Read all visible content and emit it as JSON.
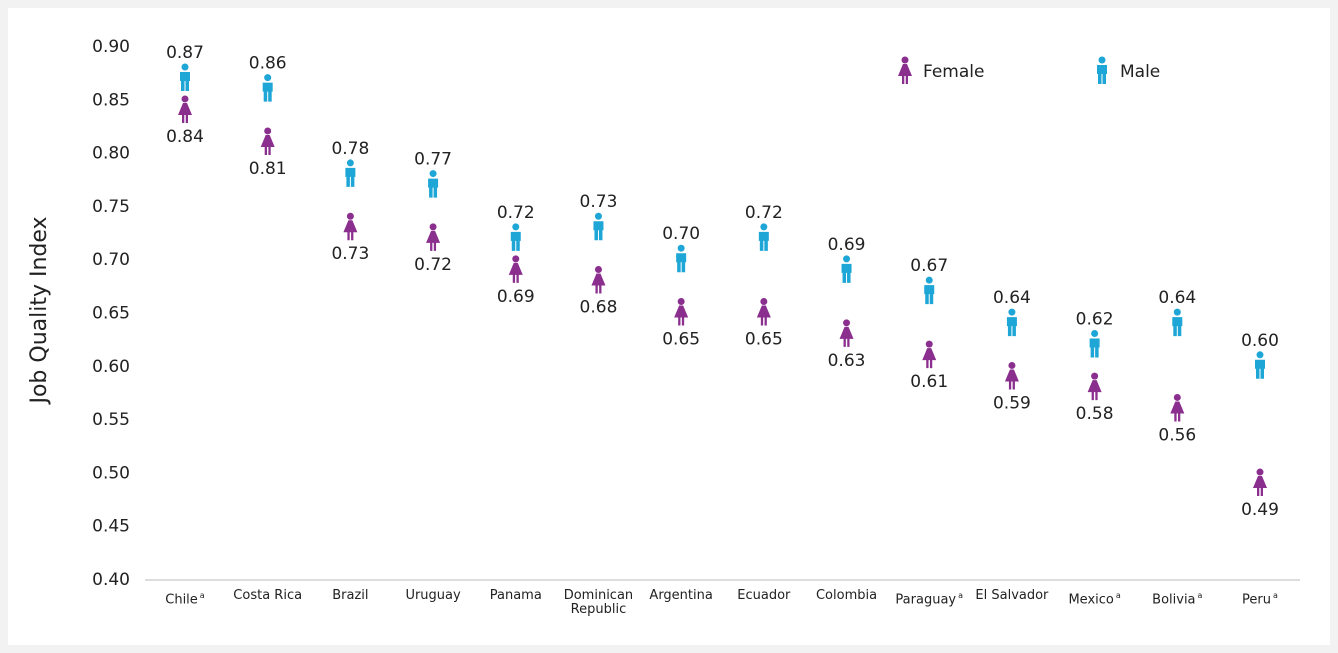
{
  "chart_data": {
    "type": "icon-dot",
    "y_label": "Job Quality Index",
    "categories": [
      "Chile",
      "Costa Rica",
      "Brazil",
      "Uruguay",
      "Panama",
      "Dominican Republic",
      "Argentina",
      "Ecuador",
      "Colombia",
      "Paraguay",
      "El Salvador",
      "Mexico",
      "Bolivia",
      "Peru"
    ],
    "category_notes": [
      "a",
      null,
      null,
      null,
      null,
      null,
      null,
      null,
      null,
      "a",
      null,
      "a",
      "a",
      "a"
    ],
    "series": [
      {
        "name": "Female",
        "color": "#8b2f8f",
        "values": [
          0.84,
          0.81,
          0.73,
          0.72,
          0.69,
          0.68,
          0.65,
          0.65,
          0.63,
          0.61,
          0.59,
          0.58,
          0.56,
          0.49
        ],
        "value_labels": [
          "0.84",
          "0.81",
          "0.73",
          "0.72",
          "0.69",
          "0.68",
          "0.65",
          "0.65",
          "0.63",
          "0.61",
          "0.59",
          "0.58",
          "0.56",
          "0.49"
        ]
      },
      {
        "name": "Male",
        "color": "#1ea6d6",
        "values": [
          0.87,
          0.86,
          0.78,
          0.77,
          0.72,
          0.73,
          0.7,
          0.72,
          0.69,
          0.67,
          0.64,
          0.62,
          0.64,
          0.6
        ],
        "value_labels": [
          "0.87",
          "0.86",
          "0.78",
          "0.77",
          "0.72",
          "0.73",
          "0.70",
          "0.72",
          "0.69",
          "0.67",
          "0.64",
          "0.62",
          "0.64",
          "0.60"
        ]
      }
    ],
    "ylim": [
      0.4,
      0.9
    ],
    "yticks": [
      {
        "value": 0.4,
        "label": "0.40"
      },
      {
        "value": 0.45,
        "label": "0.45"
      },
      {
        "value": 0.5,
        "label": "0.50"
      },
      {
        "value": 0.55,
        "label": "0.55"
      },
      {
        "value": 0.6,
        "label": "0.60"
      },
      {
        "value": 0.65,
        "label": "0.65"
      },
      {
        "value": 0.7,
        "label": "0.70"
      },
      {
        "value": 0.75,
        "label": "0.75"
      },
      {
        "value": 0.8,
        "label": "0.80"
      },
      {
        "value": 0.85,
        "label": "0.85"
      },
      {
        "value": 0.9,
        "label": "0.90"
      }
    ],
    "legend": "top-right"
  }
}
